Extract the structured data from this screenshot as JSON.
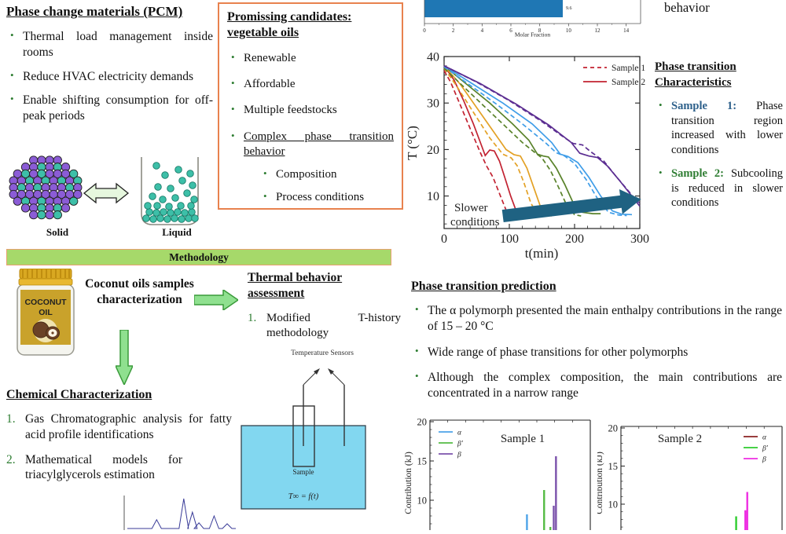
{
  "colors": {
    "accent_orange": "#e8824e",
    "methodology_green": "#a6d96a",
    "arrow_green_fill": "#8fe08f",
    "arrow_green_border": "#3a9a3a",
    "bullet_green": "#2e7d32",
    "sample1_lead_blue": "#2c5f8a",
    "sample2_lead_green": "#2e7d32",
    "bath_blue": "#82d7f0",
    "teal_arrow": "#1f6282",
    "solid_purple": "#8b5cd6",
    "solid_teal": "#3dbfa8",
    "molar_bar_blue": "#1f77b4"
  },
  "pcm": {
    "title": "Phase change materials (PCM)",
    "bullets": [
      "Thermal load management inside rooms",
      "Reduce HVAC electricity demands",
      "Enable shifting consumption for off-peak periods"
    ],
    "solid_label": "Solid",
    "liquid_label": "Liquid"
  },
  "candidates": {
    "title": "Promissing candidates: vegetable oils",
    "bullets": [
      "Renewable",
      "Affordable",
      "Multiple feedstocks"
    ],
    "underlined_bullet": "Complex phase transition behavior",
    "sub_bullets": [
      "Composition",
      "Process conditions"
    ]
  },
  "top_right_text": "behavior",
  "methodology": {
    "label": "Methodology"
  },
  "coconut": {
    "jar_text_top": "COCONUT",
    "jar_text_bottom": "OIL",
    "caption": "Coconut oils samples characterization"
  },
  "thermal": {
    "title": "Thermal behavior assessment",
    "item_num": "1.",
    "item_text": "Modified T-history methodology"
  },
  "sensors": {
    "label": "Temperature Sensors",
    "sample": "Sample",
    "formula": "T∞ = f(t)"
  },
  "chemical": {
    "title": "Chemical Characterization",
    "item1_num": "1.",
    "item1": "Gas Chromatographic analysis for fatty acid profile identifications",
    "item2_num": "2.",
    "item2": "Mathematical models for triacylglycerols estimation"
  },
  "prediction": {
    "title": "Phase transition prediction",
    "bullets": [
      "The α polymorph presented the main enthalpy contributions in the range of 15 – 20 °C",
      "Wide range of phase transitions for other polymorphs",
      "Although the complex composition, the main contributions are concentrated in a narrow range"
    ]
  },
  "characteristics": {
    "title": "Phase transition Characteristics",
    "bullet1_lead": "Sample 1:",
    "bullet1_text": "Phase transition region increased with lower conditions",
    "bullet2_lead": "Sample 2:",
    "bullet2_text": "Subcooling is reduced in slower conditions"
  },
  "chart_data": [
    {
      "id": "molar-fraction-bar",
      "type": "bar",
      "orientation": "horizontal",
      "values": [
        9.6
      ],
      "bar_label": "9.6",
      "xlabel": "Molar Fraction",
      "xlim": [
        0,
        15
      ],
      "xticks": [
        0,
        2,
        4,
        6,
        8,
        10,
        12,
        14
      ],
      "bar_color": "#1f77b4",
      "note": "cropped at top edge of poster"
    },
    {
      "id": "t-history",
      "type": "line",
      "xlabel": "t(min)",
      "ylabel": "T (°C)",
      "xlim": [
        0,
        300
      ],
      "ylim": [
        3,
        40
      ],
      "xticks": [
        0,
        100,
        200,
        300
      ],
      "yticks": [
        10,
        20,
        30,
        40
      ],
      "legend": [
        {
          "label": "Sample 1",
          "style": "dashed",
          "color": "#c22231"
        },
        {
          "label": "Sample 2",
          "style": "solid",
          "color": "#c22231"
        }
      ],
      "annotation": {
        "line1": "Slower",
        "line2": "conditions",
        "arrow_from": [
          90,
          5.7
        ],
        "arrow_to": [
          302,
          9.3
        ],
        "arrow_color": "#1f6282"
      },
      "series": [
        {
          "name": "cond1-sample1",
          "color": "#c22231",
          "dash": true,
          "points": [
            [
              0,
              37
            ],
            [
              10,
              34.5
            ],
            [
              25,
              29.5
            ],
            [
              40,
              24.5
            ],
            [
              55,
              19.5
            ],
            [
              65,
              16.5
            ],
            [
              75,
              14
            ],
            [
              85,
              10.5
            ],
            [
              95,
              7
            ],
            [
              103,
              5.5
            ],
            [
              108,
              5.2
            ]
          ]
        },
        {
          "name": "cond1-sample2",
          "color": "#c22231",
          "dash": false,
          "points": [
            [
              0,
              38
            ],
            [
              15,
              35
            ],
            [
              30,
              30.5
            ],
            [
              45,
              25.5
            ],
            [
              57,
              21
            ],
            [
              63,
              18.7
            ],
            [
              70,
              19.9
            ],
            [
              77,
              19.7
            ],
            [
              85,
              17.5
            ],
            [
              93,
              14
            ],
            [
              102,
              10
            ],
            [
              110,
              7
            ],
            [
              117,
              5.8
            ]
          ]
        },
        {
          "name": "cond2-sample1",
          "color": "#e3a125",
          "dash": true,
          "points": [
            [
              0,
              37.5
            ],
            [
              20,
              33.5
            ],
            [
              45,
              28
            ],
            [
              70,
              22.5
            ],
            [
              90,
              19
            ],
            [
              103,
              18.2
            ],
            [
              112,
              16.5
            ],
            [
              122,
              13
            ],
            [
              133,
              8.5
            ],
            [
              143,
              6
            ],
            [
              150,
              5.5
            ]
          ]
        },
        {
          "name": "cond2-sample2",
          "color": "#e3a125",
          "dash": false,
          "points": [
            [
              0,
              38
            ],
            [
              25,
              34
            ],
            [
              50,
              29
            ],
            [
              75,
              24
            ],
            [
              95,
              20
            ],
            [
              107,
              18.9
            ],
            [
              117,
              18.6
            ],
            [
              127,
              16
            ],
            [
              137,
              12
            ],
            [
              147,
              8
            ],
            [
              157,
              6
            ],
            [
              165,
              5.7
            ]
          ]
        },
        {
          "name": "cond3-sample1",
          "color": "#59822a",
          "dash": true,
          "points": [
            [
              0,
              37.5
            ],
            [
              30,
              33.5
            ],
            [
              60,
              29.5
            ],
            [
              90,
              25.5
            ],
            [
              120,
              21.5
            ],
            [
              138,
              19.5
            ],
            [
              150,
              18.2
            ],
            [
              163,
              15.5
            ],
            [
              175,
              12
            ],
            [
              188,
              8
            ],
            [
              200,
              6
            ],
            [
              210,
              5.7
            ]
          ]
        },
        {
          "name": "cond3-sample2",
          "color": "#59822a",
          "dash": false,
          "points": [
            [
              0,
              38
            ],
            [
              35,
              34
            ],
            [
              70,
              30
            ],
            [
              105,
              25.5
            ],
            [
              130,
              22
            ],
            [
              143,
              19
            ],
            [
              152,
              18.6
            ],
            [
              160,
              18.4
            ],
            [
              172,
              16
            ],
            [
              185,
              12.5
            ],
            [
              198,
              8.5
            ],
            [
              212,
              6.5
            ],
            [
              228,
              6.2
            ],
            [
              240,
              6.2
            ]
          ]
        },
        {
          "name": "cond4-sample1",
          "color": "#3f9de8",
          "dash": true,
          "points": [
            [
              0,
              37.8
            ],
            [
              40,
              33.8
            ],
            [
              80,
              29.8
            ],
            [
              120,
              25.5
            ],
            [
              155,
              21.5
            ],
            [
              172,
              19.3
            ],
            [
              185,
              18.6
            ],
            [
              200,
              17
            ],
            [
              218,
              13.5
            ],
            [
              235,
              9.5
            ],
            [
              252,
              6.5
            ],
            [
              268,
              5.9
            ],
            [
              280,
              5.8
            ]
          ]
        },
        {
          "name": "cond4-sample2",
          "color": "#3f9de8",
          "dash": false,
          "points": [
            [
              0,
              38
            ],
            [
              45,
              34
            ],
            [
              90,
              30
            ],
            [
              135,
              25.5
            ],
            [
              165,
              21.5
            ],
            [
              178,
              19
            ],
            [
              190,
              18.5
            ],
            [
              205,
              17.2
            ],
            [
              222,
              14
            ],
            [
              240,
              10
            ],
            [
              258,
              6.8
            ],
            [
              272,
              6.1
            ],
            [
              288,
              6
            ]
          ]
        },
        {
          "name": "cond5-sample1",
          "color": "#5b2d91",
          "dash": true,
          "points": [
            [
              0,
              38
            ],
            [
              50,
              34.5
            ],
            [
              100,
              30.5
            ],
            [
              150,
              26
            ],
            [
              185,
              22.5
            ],
            [
              198,
              21.3
            ],
            [
              212,
              21
            ],
            [
              225,
              19.5
            ],
            [
              245,
              17.5
            ],
            [
              262,
              14.5
            ],
            [
              280,
              11.5
            ],
            [
              295,
              9
            ],
            [
              300,
              8.5
            ]
          ]
        },
        {
          "name": "cond5-sample2",
          "color": "#5b2d91",
          "dash": false,
          "points": [
            [
              0,
              38
            ],
            [
              55,
              34.2
            ],
            [
              110,
              29.8
            ],
            [
              160,
              25.3
            ],
            [
              195,
              21.5
            ],
            [
              208,
              19.2
            ],
            [
              222,
              18.6
            ],
            [
              235,
              18.3
            ],
            [
              250,
              16.5
            ],
            [
              268,
              13.5
            ],
            [
              285,
              10.5
            ],
            [
              300,
              7.8
            ]
          ]
        }
      ]
    },
    {
      "id": "sample1-contrib",
      "type": "bar",
      "title": "Sample 1",
      "ylabel": "Contribution (kJ)",
      "yticks": [
        10,
        15,
        20
      ],
      "ylim_visible": [
        5,
        20
      ],
      "legend": [
        {
          "label": "α",
          "color": "#4da3e8"
        },
        {
          "label": "β′",
          "color": "#55bb44"
        },
        {
          "label": "β",
          "color": "#7b52ab"
        }
      ],
      "bars": [
        {
          "x": 0.605,
          "value": 8.2,
          "color": "#4da3e8"
        },
        {
          "x": 0.712,
          "value": 11.3,
          "color": "#55bb44"
        },
        {
          "x": 0.751,
          "value": 6.6,
          "color": "#55bb44"
        },
        {
          "x": 0.772,
          "value": 9.3,
          "color": "#7b52ab"
        },
        {
          "x": 0.786,
          "value": 15.6,
          "color": "#7b52ab"
        }
      ]
    },
    {
      "id": "sample2-contrib",
      "type": "bar",
      "title": "Sample 2",
      "ylabel": "Contribution (kJ)",
      "yticks": [
        10,
        15,
        20
      ],
      "ylim_visible": [
        5,
        20
      ],
      "legend": [
        {
          "label": "α",
          "color": "#8b2222"
        },
        {
          "label": "β′",
          "color": "#2ecc2e"
        },
        {
          "label": "β",
          "color": "#ee2ee2"
        }
      ],
      "bars": [
        {
          "x": 0.715,
          "value": 8.4,
          "color": "#2ecc2e"
        },
        {
          "x": 0.772,
          "value": 9.2,
          "color": "#ee2ee2"
        },
        {
          "x": 0.784,
          "value": 11.6,
          "color": "#ee2ee2"
        }
      ]
    },
    {
      "id": "chromatogram",
      "type": "line",
      "color": "#383a97",
      "peaks": [
        {
          "x": 0.27,
          "h": 0.28
        },
        {
          "x": 0.52,
          "h": 0.95
        },
        {
          "x": 0.6,
          "h": 0.52
        },
        {
          "x": 0.66,
          "h": 0.18
        },
        {
          "x": 0.8,
          "h": 0.4
        },
        {
          "x": 0.92,
          "h": 0.15
        }
      ],
      "note": "gas chromatogram, cropped at bottom edge of poster"
    }
  ]
}
